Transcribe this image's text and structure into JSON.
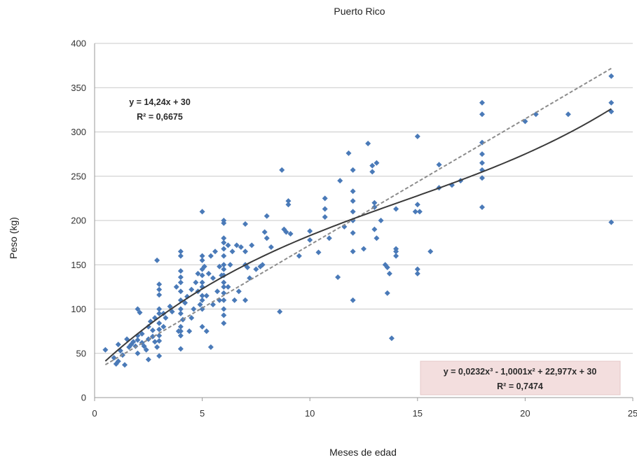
{
  "chart_data": {
    "type": "scatter",
    "title": "Puerto Rico",
    "xlabel": "Meses de edad",
    "ylabel": "Peso (kg)",
    "xlim": [
      0,
      25
    ],
    "ylim": [
      0,
      400
    ],
    "xticks": [
      "0",
      "5",
      "10",
      "15",
      "20",
      "25"
    ],
    "yticks": [
      "0",
      "50",
      "100",
      "150",
      "200",
      "250",
      "300",
      "350",
      "400"
    ],
    "grid": "horizontal",
    "colors": {
      "points": "#4a7ab8",
      "linear_trend": "#8c8c8c",
      "poly_trend": "#3a3a3a",
      "poly_box": "#f3dede"
    },
    "series": [
      {
        "points": [
          [
            0.5,
            54
          ],
          [
            0.9,
            45
          ],
          [
            1.0,
            38
          ],
          [
            1.1,
            41
          ],
          [
            1.1,
            60
          ],
          [
            1.2,
            53
          ],
          [
            1.3,
            48
          ],
          [
            1.4,
            37
          ],
          [
            1.5,
            66
          ],
          [
            1.6,
            57
          ],
          [
            1.7,
            60
          ],
          [
            1.8,
            63
          ],
          [
            1.9,
            58
          ],
          [
            2.0,
            65
          ],
          [
            2.0,
            70
          ],
          [
            2.0,
            50
          ],
          [
            2.0,
            100
          ],
          [
            2.1,
            96
          ],
          [
            2.2,
            72
          ],
          [
            2.2,
            62
          ],
          [
            2.3,
            58
          ],
          [
            2.4,
            54
          ],
          [
            2.5,
            80
          ],
          [
            2.5,
            43
          ],
          [
            2.5,
            66
          ],
          [
            2.6,
            86
          ],
          [
            2.7,
            76
          ],
          [
            2.7,
            69
          ],
          [
            2.8,
            90
          ],
          [
            2.8,
            63
          ],
          [
            2.9,
            57
          ],
          [
            2.9,
            155
          ],
          [
            3.0,
            128
          ],
          [
            3.0,
            122
          ],
          [
            3.0,
            116
          ],
          [
            3.0,
            100
          ],
          [
            3.0,
            95
          ],
          [
            3.0,
            84
          ],
          [
            3.0,
            77
          ],
          [
            3.0,
            70
          ],
          [
            3.0,
            64
          ],
          [
            3.0,
            47
          ],
          [
            3.2,
            80
          ],
          [
            3.2,
            95
          ],
          [
            3.3,
            90
          ],
          [
            3.5,
            103
          ],
          [
            3.6,
            97
          ],
          [
            3.8,
            125
          ],
          [
            3.9,
            75
          ],
          [
            4.0,
            165
          ],
          [
            4.0,
            160
          ],
          [
            4.0,
            143
          ],
          [
            4.0,
            136
          ],
          [
            4.0,
            130
          ],
          [
            4.0,
            120
          ],
          [
            4.0,
            110
          ],
          [
            4.0,
            100
          ],
          [
            4.0,
            95
          ],
          [
            4.0,
            80
          ],
          [
            4.0,
            75
          ],
          [
            4.0,
            70
          ],
          [
            4.0,
            55
          ],
          [
            4.1,
            88
          ],
          [
            4.2,
            107
          ],
          [
            4.3,
            114
          ],
          [
            4.4,
            75
          ],
          [
            4.5,
            122
          ],
          [
            4.5,
            90
          ],
          [
            4.6,
            100
          ],
          [
            4.7,
            130
          ],
          [
            4.8,
            140
          ],
          [
            4.8,
            120
          ],
          [
            4.9,
            105
          ],
          [
            5.0,
            210
          ],
          [
            5.0,
            160
          ],
          [
            5.0,
            155
          ],
          [
            5.0,
            145
          ],
          [
            5.0,
            138
          ],
          [
            5.0,
            130
          ],
          [
            5.0,
            125
          ],
          [
            5.0,
            115
          ],
          [
            5.0,
            110
          ],
          [
            5.0,
            100
          ],
          [
            5.0,
            80
          ],
          [
            5.1,
            148
          ],
          [
            5.2,
            115
          ],
          [
            5.2,
            75
          ],
          [
            5.3,
            140
          ],
          [
            5.4,
            57
          ],
          [
            5.4,
            160
          ],
          [
            5.5,
            135
          ],
          [
            5.5,
            105
          ],
          [
            5.6,
            165
          ],
          [
            5.7,
            120
          ],
          [
            5.8,
            148
          ],
          [
            5.8,
            110
          ],
          [
            5.9,
            138
          ],
          [
            6.0,
            200
          ],
          [
            6.0,
            197
          ],
          [
            6.0,
            180
          ],
          [
            6.0,
            175
          ],
          [
            6.0,
            168
          ],
          [
            6.0,
            160
          ],
          [
            6.0,
            150
          ],
          [
            6.0,
            145
          ],
          [
            6.0,
            138
          ],
          [
            6.0,
            130
          ],
          [
            6.0,
            125
          ],
          [
            6.0,
            118
          ],
          [
            6.0,
            110
          ],
          [
            6.0,
            100
          ],
          [
            6.0,
            93
          ],
          [
            6.0,
            84
          ],
          [
            6.2,
            172
          ],
          [
            6.2,
            125
          ],
          [
            6.3,
            150
          ],
          [
            6.4,
            165
          ],
          [
            6.5,
            110
          ],
          [
            6.6,
            172
          ],
          [
            6.7,
            120
          ],
          [
            6.8,
            170
          ],
          [
            7.0,
            196
          ],
          [
            7.0,
            165
          ],
          [
            7.0,
            110
          ],
          [
            7.0,
            150
          ],
          [
            7.1,
            147
          ],
          [
            7.2,
            135
          ],
          [
            7.3,
            172
          ],
          [
            7.5,
            145
          ],
          [
            7.7,
            148
          ],
          [
            7.8,
            150
          ],
          [
            7.9,
            187
          ],
          [
            8.0,
            205
          ],
          [
            8.0,
            180
          ],
          [
            8.2,
            170
          ],
          [
            8.6,
            97
          ],
          [
            8.7,
            257
          ],
          [
            8.8,
            190
          ],
          [
            8.9,
            187
          ],
          [
            9.0,
            222
          ],
          [
            9.0,
            218
          ],
          [
            9.1,
            185
          ],
          [
            9.5,
            160
          ],
          [
            10.0,
            188
          ],
          [
            10.0,
            178
          ],
          [
            10.4,
            164
          ],
          [
            10.7,
            225
          ],
          [
            10.7,
            213
          ],
          [
            10.7,
            204
          ],
          [
            10.9,
            180
          ],
          [
            11.3,
            136
          ],
          [
            11.4,
            245
          ],
          [
            11.6,
            193
          ],
          [
            11.8,
            276
          ],
          [
            12.0,
            257
          ],
          [
            12.0,
            233
          ],
          [
            12.0,
            222
          ],
          [
            12.0,
            210
          ],
          [
            12.0,
            200
          ],
          [
            12.0,
            186
          ],
          [
            12.0,
            165
          ],
          [
            12.0,
            110
          ],
          [
            12.5,
            168
          ],
          [
            12.7,
            287
          ],
          [
            12.9,
            262
          ],
          [
            12.9,
            255
          ],
          [
            13.0,
            215
          ],
          [
            13.0,
            220
          ],
          [
            13.0,
            190
          ],
          [
            13.1,
            180
          ],
          [
            13.1,
            265
          ],
          [
            13.3,
            200
          ],
          [
            13.5,
            150
          ],
          [
            13.6,
            147
          ],
          [
            13.6,
            118
          ],
          [
            13.7,
            140
          ],
          [
            13.8,
            67
          ],
          [
            14.0,
            168
          ],
          [
            14.0,
            165
          ],
          [
            14.0,
            160
          ],
          [
            14.0,
            213
          ],
          [
            14.9,
            210
          ],
          [
            15.0,
            295
          ],
          [
            15.0,
            218
          ],
          [
            15.0,
            145
          ],
          [
            15.0,
            140
          ],
          [
            15.1,
            210
          ],
          [
            15.6,
            165
          ],
          [
            16.0,
            263
          ],
          [
            16.0,
            237
          ],
          [
            16.6,
            240
          ],
          [
            17.0,
            245
          ],
          [
            18.0,
            333
          ],
          [
            18.0,
            320
          ],
          [
            18.0,
            288
          ],
          [
            18.0,
            275
          ],
          [
            18.0,
            265
          ],
          [
            18.0,
            257
          ],
          [
            18.0,
            248
          ],
          [
            18.0,
            215
          ],
          [
            20.0,
            312
          ],
          [
            20.5,
            320
          ],
          [
            22.0,
            320
          ],
          [
            24.0,
            363
          ],
          [
            24.0,
            333
          ],
          [
            24.0,
            323
          ],
          [
            24.0,
            198
          ]
        ]
      }
    ],
    "trendlines": [
      {
        "type": "linear",
        "equation": "y = 14,24x + 30",
        "r2": "R² = 0,6675",
        "a": 14.24,
        "b": 30
      },
      {
        "type": "polynomial",
        "equation": "y = 0,0232x³ - 1,0001x² + 22,977x + 30",
        "r2": "R² = 0,7474",
        "c3": 0.0232,
        "c2": -1.0001,
        "c1": 22.977,
        "c0": 30
      }
    ]
  }
}
